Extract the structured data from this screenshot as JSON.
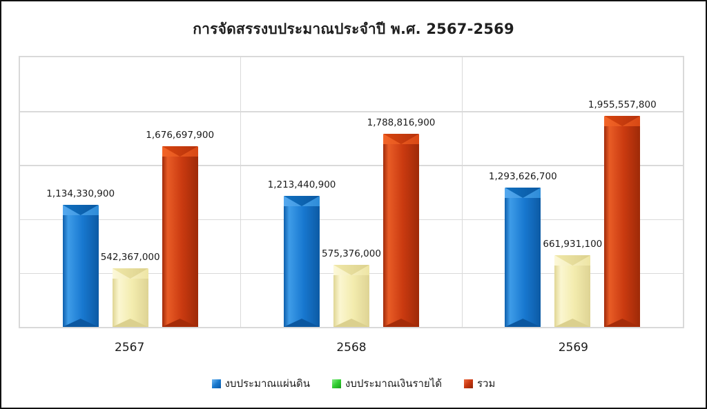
{
  "title": "การจัดสรรงบประมาณประจำปี พ.ศ. 2567-2569",
  "colors": {
    "series_blue": "#1878CE",
    "series_cream": "#F3ECAE",
    "series_red": "#CA3A10",
    "legend_green": "#2FCE2F",
    "gridline": "#D9D9D9",
    "frame_border": "#111111",
    "text": "#1A1A1A"
  },
  "chart_data": {
    "type": "bar",
    "title": "การจัดสรรงบประมาณประจำปี พ.ศ. 2567-2569",
    "categories": [
      "2567",
      "2568",
      "2569"
    ],
    "series": [
      {
        "name": "งบประมาณแผ่นดิน",
        "legend_color": "#1878CE",
        "bar_color": "#1878CE",
        "values": [
          1134330900,
          1213440900,
          1293626700
        ],
        "labels": [
          "1,134,330,900",
          "1,213,440,900",
          "1,293,626,700"
        ]
      },
      {
        "name": "งบประมาณเงินรายได้",
        "legend_color": "#2FCE2F",
        "bar_color": "#F3ECAE",
        "values": [
          542367000,
          575376000,
          661931100
        ],
        "labels": [
          "542,367,000",
          "575,376,000",
          "661,931,100"
        ]
      },
      {
        "name": "รวม",
        "legend_color": "#C8360F",
        "bar_color": "#CA3A10",
        "values": [
          1676697900,
          1788816900,
          1955557800
        ],
        "labels": [
          "1,676,697,900",
          "1,788,816,900",
          "1,955,557,800"
        ]
      }
    ],
    "xlabel": "",
    "ylabel": "",
    "ylim": [
      0,
      2500000000
    ],
    "gridline_step": 500000000,
    "grid": true,
    "y_axis_labels_visible": false,
    "legend_position": "bottom",
    "data_labels": true
  }
}
